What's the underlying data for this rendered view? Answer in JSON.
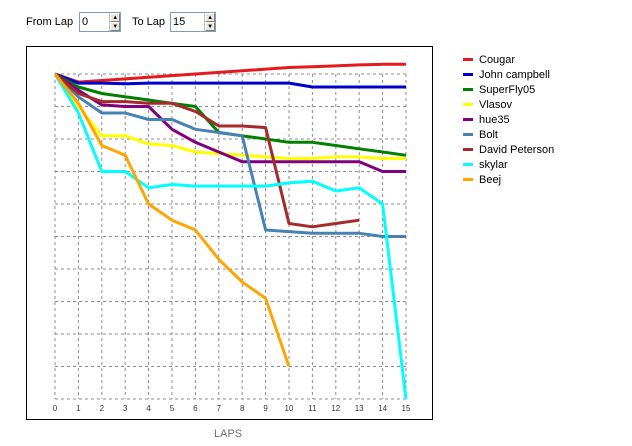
{
  "controls": {
    "from_label": "From Lap",
    "from_value": "0",
    "to_label": "To Lap",
    "to_value": "15"
  },
  "chart_data": {
    "type": "line",
    "xlabel": "LAPS",
    "ylabel": "",
    "title": "",
    "xlim": [
      0,
      15
    ],
    "ylim": [
      0,
      10
    ],
    "x_ticks": [
      "0",
      "1",
      "2",
      "3",
      "4",
      "5",
      "6",
      "7",
      "8",
      "9",
      "10",
      "11",
      "12",
      "13",
      "14",
      "15"
    ],
    "grid": true,
    "legend_position": "right",
    "series": [
      {
        "name": "Cougar",
        "color": "#e41a1c",
        "x": [
          0,
          1,
          2,
          3,
          4,
          5,
          6,
          7,
          8,
          9,
          10,
          11,
          12,
          13,
          14,
          15
        ],
        "y": [
          10,
          9.75,
          9.8,
          9.85,
          9.9,
          9.95,
          10,
          10.05,
          10.1,
          10.15,
          10.2,
          10.22,
          10.25,
          10.28,
          10.3,
          10.3
        ]
      },
      {
        "name": "John campbell",
        "color": "#0000cc",
        "x": [
          0,
          1,
          2,
          3,
          4,
          5,
          6,
          7,
          8,
          9,
          10,
          11,
          12,
          13,
          14,
          15
        ],
        "y": [
          10,
          9.72,
          9.72,
          9.7,
          9.72,
          9.72,
          9.72,
          9.72,
          9.72,
          9.72,
          9.72,
          9.6,
          9.6,
          9.6,
          9.6,
          9.6
        ]
      },
      {
        "name": "SuperFly05",
        "color": "#008000",
        "x": [
          0,
          1,
          2,
          3,
          4,
          5,
          6,
          7,
          8,
          9,
          10,
          11,
          12,
          13,
          14,
          15
        ],
        "y": [
          10,
          9.6,
          9.4,
          9.3,
          9.2,
          9.1,
          9.0,
          8.2,
          8.1,
          8.0,
          7.9,
          7.9,
          7.8,
          7.7,
          7.6,
          7.5
        ]
      },
      {
        "name": "Vlasov",
        "color": "#ffff00",
        "x": [
          0,
          1,
          2,
          3,
          4,
          5,
          6,
          7,
          8,
          9,
          10,
          11,
          12,
          13,
          14,
          15
        ],
        "y": [
          10,
          9.0,
          8.1,
          8.1,
          7.85,
          7.8,
          7.6,
          7.55,
          7.5,
          7.45,
          7.4,
          7.4,
          7.45,
          7.45,
          7.4,
          7.4
        ]
      },
      {
        "name": "hue35",
        "color": "#800080",
        "x": [
          0,
          1,
          2,
          3,
          4,
          5,
          6,
          7,
          8,
          9,
          10,
          11,
          12,
          13,
          14,
          15
        ],
        "y": [
          10,
          9.5,
          9.05,
          9.0,
          9.0,
          8.3,
          7.9,
          7.6,
          7.3,
          7.3,
          7.3,
          7.3,
          7.3,
          7.3,
          7.0,
          7.0
        ]
      },
      {
        "name": "Bolt",
        "color": "#4682b4",
        "x": [
          0,
          1,
          2,
          3,
          4,
          5,
          6,
          7,
          8,
          9,
          10,
          11,
          12,
          13,
          14,
          15
        ],
        "y": [
          10,
          9.3,
          8.8,
          8.8,
          8.6,
          8.6,
          8.3,
          8.2,
          8.1,
          5.2,
          5.15,
          5.1,
          5.1,
          5.1,
          5.0,
          5.0
        ]
      },
      {
        "name": "David Peterson",
        "color": "#a52a2a",
        "x": [
          0,
          1,
          2,
          3,
          4,
          5,
          6,
          7,
          8,
          9,
          10,
          11,
          12,
          13
        ],
        "y": [
          10,
          9.4,
          9.15,
          9.15,
          9.1,
          9.1,
          8.85,
          8.4,
          8.4,
          8.35,
          5.4,
          5.3,
          5.4,
          5.5
        ]
      },
      {
        "name": "skylar",
        "color": "#00ffff",
        "x": [
          0,
          1,
          2,
          3,
          4,
          5,
          6,
          7,
          8,
          9,
          10,
          11,
          12,
          13,
          14,
          15
        ],
        "y": [
          10,
          8.8,
          7.0,
          7.0,
          6.5,
          6.6,
          6.55,
          6.55,
          6.55,
          6.55,
          6.65,
          6.7,
          6.4,
          6.5,
          6.0,
          0.0
        ]
      },
      {
        "name": "Beej",
        "color": "#ffa500",
        "x": [
          0,
          1,
          2,
          3,
          4,
          5,
          6,
          7,
          8,
          9,
          10
        ],
        "y": [
          10,
          9.1,
          7.8,
          7.5,
          6.0,
          5.5,
          5.2,
          4.3,
          3.6,
          3.1,
          1.0
        ]
      }
    ]
  }
}
